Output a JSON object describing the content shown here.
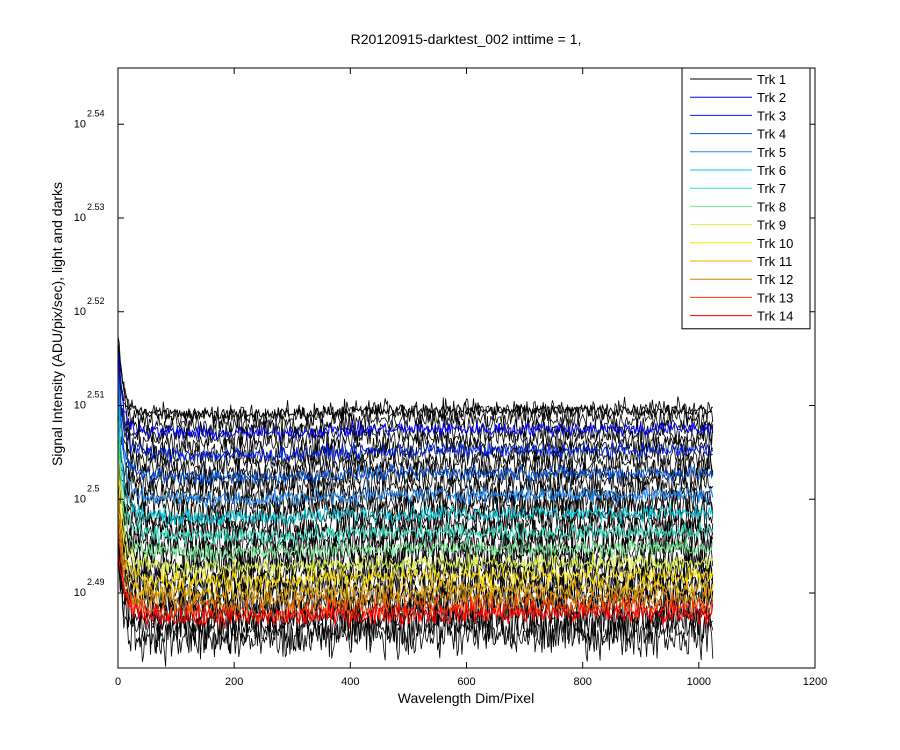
{
  "chart_data": {
    "type": "line",
    "title": "R20120915-darktest_002 inttime = 1,",
    "xlabel": "Wavelength Dim/Pixel",
    "ylabel": "Signal Intensity (ADU/pix/sec), light and darks",
    "xlim": [
      0,
      1200
    ],
    "ylim_log10": [
      2.482,
      2.546
    ],
    "y_scale": "log",
    "grid": false,
    "legend_position": "top-right",
    "x_ticks": [
      {
        "value": 0,
        "label": "0"
      },
      {
        "value": 200,
        "label": "200"
      },
      {
        "value": 400,
        "label": "400"
      },
      {
        "value": 600,
        "label": "600"
      },
      {
        "value": 800,
        "label": "800"
      },
      {
        "value": 1000,
        "label": "1000"
      },
      {
        "value": 1200,
        "label": "1200"
      }
    ],
    "y_ticks": [
      {
        "value": 2.49,
        "base": "10",
        "exponent": "2.49"
      },
      {
        "value": 2.5,
        "base": "10",
        "exponent": "2.5"
      },
      {
        "value": 2.51,
        "base": "10",
        "exponent": "2.51"
      },
      {
        "value": 2.52,
        "base": "10",
        "exponent": "2.52"
      },
      {
        "value": 2.53,
        "base": "10",
        "exponent": "2.53"
      },
      {
        "value": 2.54,
        "base": "10",
        "exponent": "2.54"
      }
    ],
    "pixel_range": [
      0,
      1024
    ],
    "series": [
      {
        "name": "Trk 1",
        "color": "#000000",
        "level_log10": 2.5095,
        "start_log10": 2.517
      },
      {
        "name": "Trk 2",
        "color": "#0000ff",
        "level_log10": 2.5075,
        "start_log10": 2.516
      },
      {
        "name": "Trk 3",
        "color": "#0022ee",
        "level_log10": 2.5052,
        "start_log10": 2.515
      },
      {
        "name": "Trk 4",
        "color": "#0050dd",
        "level_log10": 2.5028,
        "start_log10": 2.514
      },
      {
        "name": "Trk 5",
        "color": "#1e8cff",
        "level_log10": 2.5005,
        "start_log10": 2.513
      },
      {
        "name": "Trk 6",
        "color": "#00c8d8",
        "level_log10": 2.4985,
        "start_log10": 2.511
      },
      {
        "name": "Trk 7",
        "color": "#30e0c0",
        "level_log10": 2.4965,
        "start_log10": 2.509
      },
      {
        "name": "Trk 8",
        "color": "#70e890",
        "level_log10": 2.4948,
        "start_log10": 2.507
      },
      {
        "name": "Trk 9",
        "color": "#d8f040",
        "level_log10": 2.4932,
        "start_log10": 2.505
      },
      {
        "name": "Trk 10",
        "color": "#ffe000",
        "level_log10": 2.4918,
        "start_log10": 2.503
      },
      {
        "name": "Trk 11",
        "color": "#e8b000",
        "level_log10": 2.4905,
        "start_log10": 2.501
      },
      {
        "name": "Trk 12",
        "color": "#d88000",
        "level_log10": 2.4895,
        "start_log10": 2.499
      },
      {
        "name": "Trk 13",
        "color": "#ff4000",
        "level_log10": 2.4885,
        "start_log10": 2.497
      },
      {
        "name": "Trk 14",
        "color": "#ff0000",
        "level_log10": 2.4878,
        "start_log10": 2.495
      }
    ],
    "dark_series": {
      "color": "#000000",
      "top_level_log10": 2.5095,
      "bottom_level_log10": 2.4855
    }
  }
}
